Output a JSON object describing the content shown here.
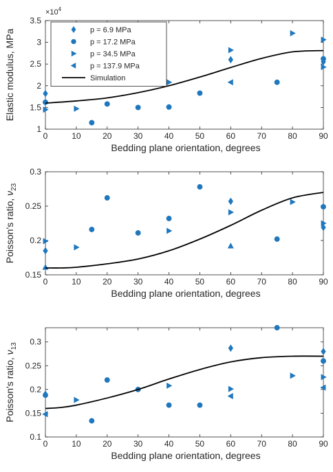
{
  "colors": {
    "marker": "#1f77bd",
    "line": "#000000",
    "axis": "#262626"
  },
  "chart_data": [
    {
      "type": "scatter",
      "xlabel": "Bedding plane orientation, degrees",
      "ylabel": "Elastic modulus, MPa",
      "exponent_label": "×10^4",
      "xlim": [
        0,
        90
      ],
      "ylim": [
        1,
        3.5
      ],
      "xticks": [
        0,
        10,
        20,
        30,
        40,
        50,
        60,
        70,
        80,
        90
      ],
      "yticks": [
        1,
        1.5,
        2,
        2.5,
        3,
        3.5
      ],
      "ytick_labels": [
        "1",
        "1.5",
        "2",
        "2.5",
        "3",
        "3.5"
      ],
      "legend": {
        "placement": "top-left"
      },
      "series": [
        {
          "name": "p = 6.9 MPa",
          "marker": "diamond",
          "x": [
            0,
            60,
            90
          ],
          "y": [
            1.82,
            2.6,
            2.55
          ]
        },
        {
          "name": "p = 17.2 MPa",
          "marker": "circle",
          "x": [
            0,
            15,
            20,
            30,
            40,
            50,
            75,
            90
          ],
          "y": [
            1.62,
            1.15,
            1.58,
            1.5,
            1.51,
            1.83,
            2.08,
            2.62
          ]
        },
        {
          "name": "p = 34.5 MPa",
          "marker": "triangle-right",
          "x": [
            0,
            10,
            40,
            60,
            80,
            90,
            90
          ],
          "y": [
            1.45,
            1.47,
            2.08,
            2.82,
            3.21,
            3.06,
            2.43
          ]
        },
        {
          "name": "p = 137.9 MPa",
          "marker": "triangle-left",
          "x": [
            60
          ],
          "y": [
            2.08
          ]
        },
        {
          "name": "Simulation",
          "marker": "none",
          "line": true,
          "x": [
            0,
            10,
            20,
            30,
            40,
            50,
            60,
            70,
            80,
            90
          ],
          "y": [
            1.6,
            1.65,
            1.72,
            1.84,
            2.0,
            2.2,
            2.42,
            2.63,
            2.78,
            2.81
          ]
        }
      ]
    },
    {
      "type": "scatter",
      "xlabel": "Bedding plane orientation, degrees",
      "ylabel": "Poisson's ratio,",
      "ylabel_symbol": "ν",
      "ylabel_sub": "23",
      "xlim": [
        0,
        90
      ],
      "ylim": [
        0.15,
        0.3
      ],
      "xticks": [
        0,
        10,
        20,
        30,
        40,
        50,
        60,
        70,
        80,
        90
      ],
      "yticks": [
        0.15,
        0.2,
        0.25,
        0.3
      ],
      "ytick_labels": [
        "0.15",
        "0.2",
        "0.25",
        "0.3"
      ],
      "series": [
        {
          "name": "p = 6.9 MPa",
          "marker": "diamond",
          "x": [
            0,
            60,
            90
          ],
          "y": [
            0.185,
            0.257,
            0.219
          ]
        },
        {
          "name": "p = 17.2 MPa",
          "marker": "circle",
          "x": [
            15,
            20,
            30,
            40,
            50,
            75,
            90
          ],
          "y": [
            0.216,
            0.262,
            0.211,
            0.232,
            0.278,
            0.202,
            0.249
          ]
        },
        {
          "name": "p = 34.5 MPa",
          "marker": "triangle-right",
          "x": [
            0,
            10,
            40,
            60,
            80,
            90
          ],
          "y": [
            0.199,
            0.19,
            0.214,
            0.241,
            0.256,
            0.225
          ]
        },
        {
          "name": "p = 137.9 MPa",
          "marker": "triangle-up",
          "x": [
            0,
            60
          ],
          "y": [
            0.161,
            0.192
          ]
        },
        {
          "name": "Simulation",
          "marker": "none",
          "line": true,
          "x": [
            0,
            5,
            10,
            20,
            30,
            40,
            50,
            60,
            70,
            80,
            90
          ],
          "y": [
            0.16,
            0.16,
            0.161,
            0.166,
            0.173,
            0.185,
            0.202,
            0.222,
            0.244,
            0.262,
            0.27
          ]
        }
      ]
    },
    {
      "type": "scatter",
      "xlabel": "Bedding plane orientation, degrees",
      "ylabel": "Poisson's ratio,",
      "ylabel_symbol": "ν",
      "ylabel_sub": "13",
      "xlim": [
        0,
        90
      ],
      "ylim": [
        0.1,
        0.33
      ],
      "xticks": [
        0,
        10,
        20,
        30,
        40,
        50,
        60,
        70,
        80,
        90
      ],
      "yticks": [
        0.1,
        0.15,
        0.2,
        0.25,
        0.3
      ],
      "ytick_labels": [
        "0.1",
        "0.15",
        "0.2",
        "0.25",
        "0.3"
      ],
      "series": [
        {
          "name": "p = 6.9 MPa",
          "marker": "diamond",
          "x": [
            0,
            60,
            90
          ],
          "y": [
            0.19,
            0.287,
            0.28
          ]
        },
        {
          "name": "p = 17.2 MPa",
          "marker": "circle",
          "x": [
            0,
            15,
            20,
            30,
            40,
            50,
            75,
            90
          ],
          "y": [
            0.188,
            0.134,
            0.22,
            0.2,
            0.167,
            0.167,
            0.33,
            0.26
          ]
        },
        {
          "name": "p = 34.5 MPa",
          "marker": "triangle-right",
          "x": [
            10,
            40,
            60,
            80,
            90
          ],
          "y": [
            0.178,
            0.208,
            0.201,
            0.229,
            0.226
          ]
        },
        {
          "name": "p = 137.9 MPa",
          "marker": "triangle-left",
          "x": [
            0,
            60,
            90
          ],
          "y": [
            0.148,
            0.186,
            0.204
          ]
        },
        {
          "name": "Simulation",
          "marker": "none",
          "line": true,
          "x": [
            0,
            5,
            10,
            20,
            30,
            40,
            50,
            60,
            70,
            80,
            90
          ],
          "y": [
            0.16,
            0.162,
            0.167,
            0.182,
            0.2,
            0.222,
            0.242,
            0.258,
            0.267,
            0.27,
            0.27
          ]
        }
      ]
    }
  ]
}
